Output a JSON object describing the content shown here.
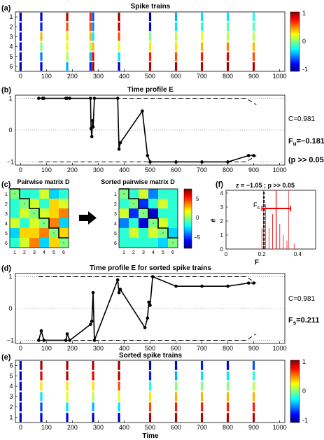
{
  "colorbar_ticks": [
    "1",
    "0",
    "-1"
  ],
  "tick_labels_x": [
    "0",
    "100",
    "200",
    "300",
    "400",
    "500",
    "600",
    "700",
    "800",
    "900",
    "1000"
  ],
  "xlabel": "Time",
  "panel_a": {
    "letter": "(a)",
    "title": "Spike trains",
    "yticks": [
      "1",
      "2",
      "3",
      "4",
      "5",
      "6"
    ]
  },
  "panel_b": {
    "letter": "(b)",
    "title": "Time profile E",
    "yticks": [
      "1",
      "0",
      "−1"
    ],
    "c_label": "C=0.981",
    "f_label": "F",
    "f_sub": "u",
    "f_value": "=−0.181",
    "p_label": "(p >> 0.05)"
  },
  "panel_c": {
    "letter": "(c)",
    "title_left": "Pairwise matrix D",
    "title_right": "Sorted pairwise matrix D",
    "ticks": [
      "1",
      "2",
      "3",
      "4",
      "5",
      "6"
    ],
    "colorbar_ticks": [
      "5",
      "0",
      "−5"
    ]
  },
  "panel_f": {
    "letter": "(f)",
    "title": "z = −1.05   ;  p >> 0.05",
    "ylabel": "#",
    "xlabel": "F",
    "yticks": [
      "0",
      "1",
      "2",
      "3",
      "4"
    ],
    "xticks": [
      "0",
      "0.2",
      "0.4"
    ],
    "fs_label": "F",
    "fs_sub": "s"
  },
  "panel_d": {
    "letter": "(d)",
    "title": "Time profile E for sorted spike trains",
    "yticks": [
      "1",
      "0",
      "−1"
    ],
    "c_label": "C=0.981",
    "f_label": "F",
    "f_sub": "s",
    "f_value": "=0.211"
  },
  "panel_e": {
    "letter": "(e)",
    "title": "Sorted spike trains",
    "yticks": [
      "6",
      "5",
      "4",
      "3",
      "2",
      "1"
    ]
  },
  "chart_data": [
    {
      "type": "raster",
      "panel": "a",
      "title": "Spike trains",
      "xlim": [
        -20,
        1020
      ],
      "rows": [
        "1",
        "2",
        "3",
        "4",
        "5",
        "6"
      ],
      "events": [
        {
          "t": 0,
          "row": 1,
          "c": -0.9
        },
        {
          "t": 0,
          "row": 2,
          "c": -0.85
        },
        {
          "t": 0,
          "row": 3,
          "c": -0.8
        },
        {
          "t": 0,
          "row": 4,
          "c": -0.8
        },
        {
          "t": 0,
          "row": 5,
          "c": -0.9
        },
        {
          "t": 0,
          "row": 6,
          "c": -0.95
        },
        {
          "t": 80,
          "row": 1,
          "c": -0.8
        },
        {
          "t": 80,
          "row": 2,
          "c": -0.7
        },
        {
          "t": 80,
          "row": 3,
          "c": 0.4
        },
        {
          "t": 80,
          "row": 4,
          "c": 0.0
        },
        {
          "t": 80,
          "row": 5,
          "c": -0.5
        },
        {
          "t": 80,
          "row": 6,
          "c": -0.8
        },
        {
          "t": 180,
          "row": 1,
          "c": 0.9
        },
        {
          "t": 180,
          "row": 2,
          "c": 0.6
        },
        {
          "t": 180,
          "row": 3,
          "c": 0.3
        },
        {
          "t": 180,
          "row": 4,
          "c": 0.2
        },
        {
          "t": 180,
          "row": 5,
          "c": 0.1
        },
        {
          "t": 180,
          "row": 6,
          "c": -0.4
        },
        {
          "t": 270,
          "row": 1,
          "c": 0.7
        },
        {
          "t": 270,
          "row": 2,
          "c": 0.6
        },
        {
          "t": 270,
          "row": 3,
          "c": 0.4
        },
        {
          "t": 270,
          "row": 4,
          "c": 0.1
        },
        {
          "t": 270,
          "row": 5,
          "c": -0.4
        },
        {
          "t": 270,
          "row": 6,
          "c": -0.7
        },
        {
          "t": 280,
          "row": 1,
          "c": -0.6
        },
        {
          "t": 280,
          "row": 2,
          "c": -0.5
        },
        {
          "t": 280,
          "row": 3,
          "c": -0.3
        },
        {
          "t": 280,
          "row": 4,
          "c": 0.4
        },
        {
          "t": 280,
          "row": 5,
          "c": 0.8
        },
        {
          "t": 280,
          "row": 6,
          "c": 0.95
        },
        {
          "t": 380,
          "row": 1,
          "c": 0.95
        },
        {
          "t": 380,
          "row": 2,
          "c": 0.9
        },
        {
          "t": 380,
          "row": 3,
          "c": 0.6
        },
        {
          "t": 380,
          "row": 4,
          "c": 0.2
        },
        {
          "t": 380,
          "row": 5,
          "c": -0.3
        },
        {
          "t": 380,
          "row": 6,
          "c": -0.9
        },
        {
          "t": 500,
          "row": 1,
          "c": -0.9
        },
        {
          "t": 500,
          "row": 2,
          "c": -0.8
        },
        {
          "t": 500,
          "row": 3,
          "c": 0.0
        },
        {
          "t": 500,
          "row": 4,
          "c": 0.3
        },
        {
          "t": 500,
          "row": 5,
          "c": 0.7
        },
        {
          "t": 500,
          "row": 6,
          "c": 0.9
        },
        {
          "t": 600,
          "row": 1,
          "c": -0.4
        },
        {
          "t": 600,
          "row": 2,
          "c": -0.3
        },
        {
          "t": 600,
          "row": 3,
          "c": 0.1
        },
        {
          "t": 600,
          "row": 4,
          "c": 0.3
        },
        {
          "t": 600,
          "row": 5,
          "c": 0.6
        },
        {
          "t": 600,
          "row": 6,
          "c": 0.9
        },
        {
          "t": 700,
          "row": 1,
          "c": -0.3
        },
        {
          "t": 700,
          "row": 2,
          "c": -0.2
        },
        {
          "t": 700,
          "row": 3,
          "c": 0.2
        },
        {
          "t": 700,
          "row": 4,
          "c": 0.4
        },
        {
          "t": 700,
          "row": 5,
          "c": 0.7
        },
        {
          "t": 700,
          "row": 6,
          "c": 0.9
        },
        {
          "t": 800,
          "row": 1,
          "c": -0.3
        },
        {
          "t": 800,
          "row": 2,
          "c": -0.1
        },
        {
          "t": 800,
          "row": 3,
          "c": 0.1
        },
        {
          "t": 800,
          "row": 4,
          "c": 0.5
        },
        {
          "t": 800,
          "row": 5,
          "c": 0.8
        },
        {
          "t": 800,
          "row": 6,
          "c": 0.95
        },
        {
          "t": 900,
          "row": 1,
          "c": -0.2
        },
        {
          "t": 900,
          "row": 2,
          "c": -0.1
        },
        {
          "t": 900,
          "row": 3,
          "c": 0.1
        },
        {
          "t": 900,
          "row": 4,
          "c": 0.4
        },
        {
          "t": 900,
          "row": 5,
          "c": 0.6
        },
        {
          "t": 900,
          "row": 6,
          "c": 0.9
        }
      ]
    },
    {
      "type": "line",
      "panel": "b",
      "title": "Time profile E",
      "xlim": [
        -20,
        1020
      ],
      "ylim": [
        -1.1,
        1.1
      ],
      "series": [
        {
          "points": [
            [
              70,
              1
            ],
            [
              85,
              1
            ],
            [
              90,
              1
            ],
            [
              175,
              1
            ],
            [
              180,
              1
            ],
            [
              190,
              1
            ],
            [
              270,
              1
            ],
            [
              272,
              0.05
            ],
            [
              275,
              -0.2
            ],
            [
              278,
              0.3
            ],
            [
              280,
              0.1
            ],
            [
              285,
              1
            ],
            [
              375,
              1
            ],
            [
              380,
              -0.6
            ],
            [
              385,
              -0.4
            ],
            [
              470,
              0.6
            ],
            [
              490,
              -0.8
            ],
            [
              500,
              -1
            ],
            [
              600,
              -1
            ],
            [
              700,
              -1
            ],
            [
              800,
              -1
            ],
            [
              880,
              -0.8
            ],
            [
              900,
              -0.8
            ]
          ]
        }
      ],
      "dashed_top": [
        [
          70,
          1
        ],
        [
          870,
          1
        ],
        [
          910,
          0.8
        ]
      ],
      "dashed_bottom": [
        [
          70,
          -1
        ],
        [
          870,
          -1
        ],
        [
          910,
          -0.8
        ]
      ]
    },
    {
      "type": "heatmap",
      "panel": "c-left",
      "title": "Pairwise matrix D",
      "values": [
        [
          0,
          -1,
          -1,
          1,
          -2,
          -1
        ],
        [
          -1,
          0,
          1,
          -1,
          2,
          1
        ],
        [
          -1,
          1,
          0,
          1,
          2,
          3
        ],
        [
          1,
          -1,
          1,
          0,
          3,
          -2
        ],
        [
          -2,
          2,
          2,
          3,
          0,
          2
        ],
        [
          -1,
          1,
          3,
          -2,
          2,
          0
        ]
      ]
    },
    {
      "type": "heatmap",
      "panel": "c-right",
      "title": "Sorted pairwise matrix D",
      "values": [
        [
          0,
          -1,
          1,
          -3,
          -1,
          -1
        ],
        [
          -1,
          0,
          -4,
          -1,
          1,
          -1
        ],
        [
          1,
          -4,
          0,
          -5,
          -1,
          -1
        ],
        [
          -3,
          -1,
          -5,
          0,
          1,
          -1
        ],
        [
          -1,
          1,
          -1,
          1,
          0,
          -2
        ],
        [
          -1,
          -1,
          -1,
          -1,
          -2,
          0
        ]
      ]
    },
    {
      "type": "bar",
      "panel": "f",
      "title": "z = −1.05   ;  p >> 0.05",
      "xlim": [
        0,
        0.5
      ],
      "ylim": [
        0,
        4.2
      ],
      "bins": [
        [
          0.2,
          1.5
        ],
        [
          0.21,
          2.5
        ],
        [
          0.22,
          3.2
        ],
        [
          0.24,
          1.5
        ],
        [
          0.26,
          2.5
        ],
        [
          0.28,
          1.2
        ],
        [
          0.3,
          1.8
        ],
        [
          0.32,
          1.0
        ],
        [
          0.34,
          0.6
        ],
        [
          0.38,
          0.4
        ]
      ],
      "fu_value": -0.181,
      "fs_value": 0.211,
      "mean": 0.28,
      "std": 0.08
    },
    {
      "type": "line",
      "panel": "d",
      "title": "Time profile E for sorted spike trains",
      "xlim": [
        -20,
        1020
      ],
      "ylim": [
        -1.1,
        1.1
      ],
      "series": [
        {
          "points": [
            [
              70,
              -1
            ],
            [
              80,
              -0.7
            ],
            [
              90,
              -1
            ],
            [
              175,
              -1
            ],
            [
              180,
              -0.8
            ],
            [
              190,
              -1
            ],
            [
              270,
              -0.5
            ],
            [
              275,
              -0.4
            ],
            [
              280,
              0.5
            ],
            [
              285,
              -1
            ],
            [
              375,
              0.9
            ],
            [
              380,
              0.5
            ],
            [
              385,
              0.6
            ],
            [
              480,
              -0.6
            ],
            [
              490,
              -0.3
            ],
            [
              495,
              0.2
            ],
            [
              500,
              0.1
            ],
            [
              510,
              1
            ],
            [
              600,
              0.7
            ],
            [
              700,
              0.7
            ],
            [
              800,
              0.7
            ],
            [
              880,
              0.8
            ],
            [
              900,
              0.8
            ]
          ]
        }
      ],
      "dashed_top": [
        [
          70,
          1
        ],
        [
          870,
          1
        ],
        [
          910,
          0.8
        ]
      ],
      "dashed_bottom": [
        [
          70,
          -1
        ],
        [
          870,
          -1
        ],
        [
          910,
          -0.8
        ]
      ]
    },
    {
      "type": "raster",
      "panel": "e",
      "title": "Sorted spike trains",
      "xlim": [
        -20,
        1020
      ],
      "rows": [
        "6",
        "5",
        "4",
        "3",
        "2",
        "1"
      ],
      "events": [
        {
          "t": 0,
          "row": 1,
          "c": -0.9
        },
        {
          "t": 0,
          "row": 2,
          "c": -0.9
        },
        {
          "t": 0,
          "row": 3,
          "c": -0.9
        },
        {
          "t": 0,
          "row": 4,
          "c": -0.9
        },
        {
          "t": 0,
          "row": 5,
          "c": -0.9
        },
        {
          "t": 0,
          "row": 6,
          "c": -0.9
        },
        {
          "t": 80,
          "row": 1,
          "c": 0.9
        },
        {
          "t": 80,
          "row": 2,
          "c": 0.8
        },
        {
          "t": 80,
          "row": 3,
          "c": 0.3
        },
        {
          "t": 80,
          "row": 4,
          "c": -0.3
        },
        {
          "t": 80,
          "row": 5,
          "c": -0.6
        },
        {
          "t": 80,
          "row": 6,
          "c": -0.8
        },
        {
          "t": 180,
          "row": 1,
          "c": 0.9
        },
        {
          "t": 180,
          "row": 2,
          "c": 0.9
        },
        {
          "t": 180,
          "row": 3,
          "c": 0.3
        },
        {
          "t": 180,
          "row": 4,
          "c": 0.2
        },
        {
          "t": 180,
          "row": 5,
          "c": -0.3
        },
        {
          "t": 180,
          "row": 6,
          "c": -0.8
        },
        {
          "t": 280,
          "row": 1,
          "c": 0.9
        },
        {
          "t": 280,
          "row": 2,
          "c": 0.8
        },
        {
          "t": 280,
          "row": 3,
          "c": 0.3
        },
        {
          "t": 280,
          "row": 4,
          "c": 0.1
        },
        {
          "t": 280,
          "row": 5,
          "c": -0.4
        },
        {
          "t": 280,
          "row": 6,
          "c": -0.9
        },
        {
          "t": 380,
          "row": 1,
          "c": 0.95
        },
        {
          "t": 380,
          "row": 2,
          "c": 0.9
        },
        {
          "t": 380,
          "row": 3,
          "c": 0.6
        },
        {
          "t": 380,
          "row": 4,
          "c": 0.2
        },
        {
          "t": 380,
          "row": 5,
          "c": -0.3
        },
        {
          "t": 380,
          "row": 6,
          "c": -0.9
        },
        {
          "t": 500,
          "row": 1,
          "c": -0.9
        },
        {
          "t": 500,
          "row": 2,
          "c": -0.7
        },
        {
          "t": 500,
          "row": 3,
          "c": -0.2
        },
        {
          "t": 500,
          "row": 4,
          "c": 0.3
        },
        {
          "t": 500,
          "row": 5,
          "c": 0.6
        },
        {
          "t": 500,
          "row": 6,
          "c": 0.9
        },
        {
          "t": 600,
          "row": 1,
          "c": -0.8
        },
        {
          "t": 600,
          "row": 2,
          "c": -0.4
        },
        {
          "t": 600,
          "row": 3,
          "c": 0.0
        },
        {
          "t": 600,
          "row": 4,
          "c": 0.4
        },
        {
          "t": 600,
          "row": 5,
          "c": 0.7
        },
        {
          "t": 600,
          "row": 6,
          "c": 0.9
        },
        {
          "t": 700,
          "row": 1,
          "c": -0.7
        },
        {
          "t": 700,
          "row": 2,
          "c": -0.3
        },
        {
          "t": 700,
          "row": 3,
          "c": 0.0
        },
        {
          "t": 700,
          "row": 4,
          "c": 0.4
        },
        {
          "t": 700,
          "row": 5,
          "c": 0.7
        },
        {
          "t": 700,
          "row": 6,
          "c": 0.9
        },
        {
          "t": 800,
          "row": 1,
          "c": -0.8
        },
        {
          "t": 800,
          "row": 2,
          "c": -0.3
        },
        {
          "t": 800,
          "row": 3,
          "c": 0.0
        },
        {
          "t": 800,
          "row": 4,
          "c": 0.4
        },
        {
          "t": 800,
          "row": 5,
          "c": 0.7
        },
        {
          "t": 800,
          "row": 6,
          "c": 0.9
        },
        {
          "t": 900,
          "row": 1,
          "c": -0.6
        },
        {
          "t": 900,
          "row": 2,
          "c": -0.2
        },
        {
          "t": 900,
          "row": 3,
          "c": 0.1
        },
        {
          "t": 900,
          "row": 4,
          "c": 0.4
        },
        {
          "t": 900,
          "row": 5,
          "c": 0.7
        },
        {
          "t": 900,
          "row": 6,
          "c": 0.9
        }
      ]
    }
  ]
}
